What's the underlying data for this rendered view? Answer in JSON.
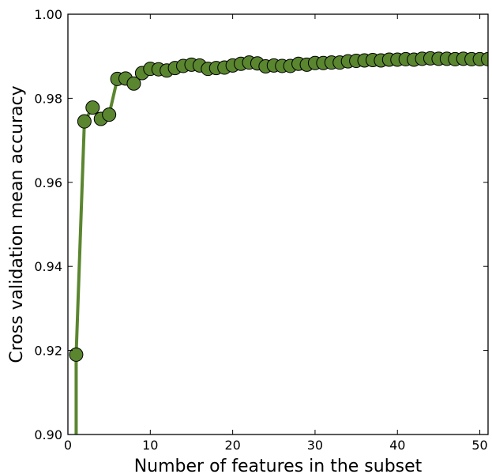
{
  "chart_data": {
    "type": "line",
    "title": "",
    "xlabel": "Number of features in the subset",
    "ylabel": "Cross validation mean accuracy",
    "xlim": [
      0,
      51
    ],
    "ylim": [
      0.9,
      1.0
    ],
    "x_ticks": [
      0,
      10,
      20,
      30,
      40,
      50
    ],
    "y_ticks": [
      0.9,
      0.92,
      0.94,
      0.96,
      0.98,
      1.0
    ],
    "x_tick_labels": [
      "0",
      "10",
      "20",
      "30",
      "40",
      "50"
    ],
    "y_tick_labels": [
      "0.90",
      "0.92",
      "0.94",
      "0.96",
      "0.98",
      "1.00"
    ],
    "grid": false,
    "line_color": "#5a862f",
    "marker_color": "#5a862f",
    "marker_edge": "#000000",
    "series": [
      {
        "x": [
          1,
          2,
          3,
          4,
          5,
          6,
          7,
          8,
          9,
          10,
          11,
          12,
          13,
          14,
          15,
          16,
          17,
          18,
          19,
          20,
          21,
          22,
          23,
          24,
          25,
          26,
          27,
          28,
          29,
          30,
          31,
          32,
          33,
          34,
          35,
          36,
          37,
          38,
          39,
          40,
          41,
          42,
          43,
          44,
          45,
          46,
          47,
          48,
          49,
          50,
          51
        ],
        "values": [
          0.919,
          0.9745,
          0.9778,
          0.9751,
          0.9761,
          0.9846,
          0.9847,
          0.9835,
          0.986,
          0.987,
          0.9869,
          0.9866,
          0.9872,
          0.9877,
          0.988,
          0.9878,
          0.987,
          0.9872,
          0.9873,
          0.9878,
          0.9882,
          0.9885,
          0.9883,
          0.9876,
          0.9878,
          0.9877,
          0.9877,
          0.9882,
          0.988,
          0.9884,
          0.9884,
          0.9885,
          0.9885,
          0.9888,
          0.9889,
          0.989,
          0.9891,
          0.989,
          0.9892,
          0.9892,
          0.9893,
          0.9892,
          0.9894,
          0.9895,
          0.9894,
          0.9894,
          0.9893,
          0.9894,
          0.9893,
          0.9893,
          0.9893
        ],
        "line_start": {
          "x": 1,
          "y": 0.9
        }
      }
    ]
  }
}
